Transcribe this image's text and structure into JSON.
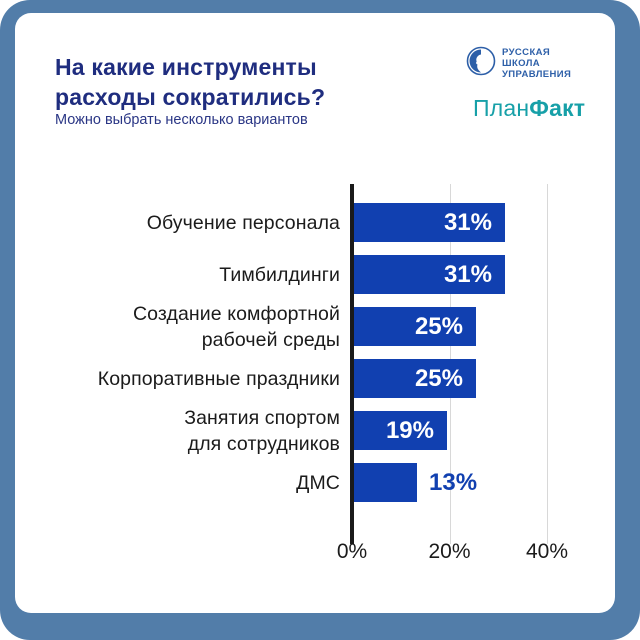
{
  "page": {
    "frame_color": "#527da9",
    "card_color": "#ffffff"
  },
  "header": {
    "title": "На какие инструменты\nрасходы сократились?",
    "subtitle": "Можно выбрать несколько вариантов"
  },
  "logos": {
    "rshu": {
      "icon": "profile-in-circle",
      "lines": [
        "РУССКАЯ",
        "ШКОЛА",
        "УПРАВЛЕНИЯ"
      ],
      "color": "#2d5fa8"
    },
    "planfact": {
      "part1": "План",
      "part2": "Факт",
      "color": "#17a0a8"
    }
  },
  "chart_data": {
    "type": "bar",
    "orientation": "horizontal",
    "title": "На какие инструменты расходы сократились?",
    "subtitle": "Можно выбрать несколько вариантов",
    "categories": [
      "Обучение персонала",
      "Тимбилдинги",
      "Создание комфортной\nрабочей среды",
      "Корпоративные праздники",
      "Занятия спортом\nдля сотрудников",
      "ДМС"
    ],
    "values": [
      31,
      31,
      25,
      25,
      19,
      13
    ],
    "value_labels": [
      "31%",
      "31%",
      "25%",
      "25%",
      "19%",
      "13%"
    ],
    "x_ticks": [
      0,
      20,
      40
    ],
    "x_tick_labels": [
      "0%",
      "20%",
      "40%"
    ],
    "xlim": [
      0,
      40
    ],
    "grid": true,
    "bar_color": "#1140b0",
    "inside_label_color": "#ffffff",
    "outside_label_color": "#1140b0",
    "outside_label_threshold": 15,
    "grid_color": "#d8d8d8",
    "axis_color": "#1a1a1a",
    "legend": false
  }
}
